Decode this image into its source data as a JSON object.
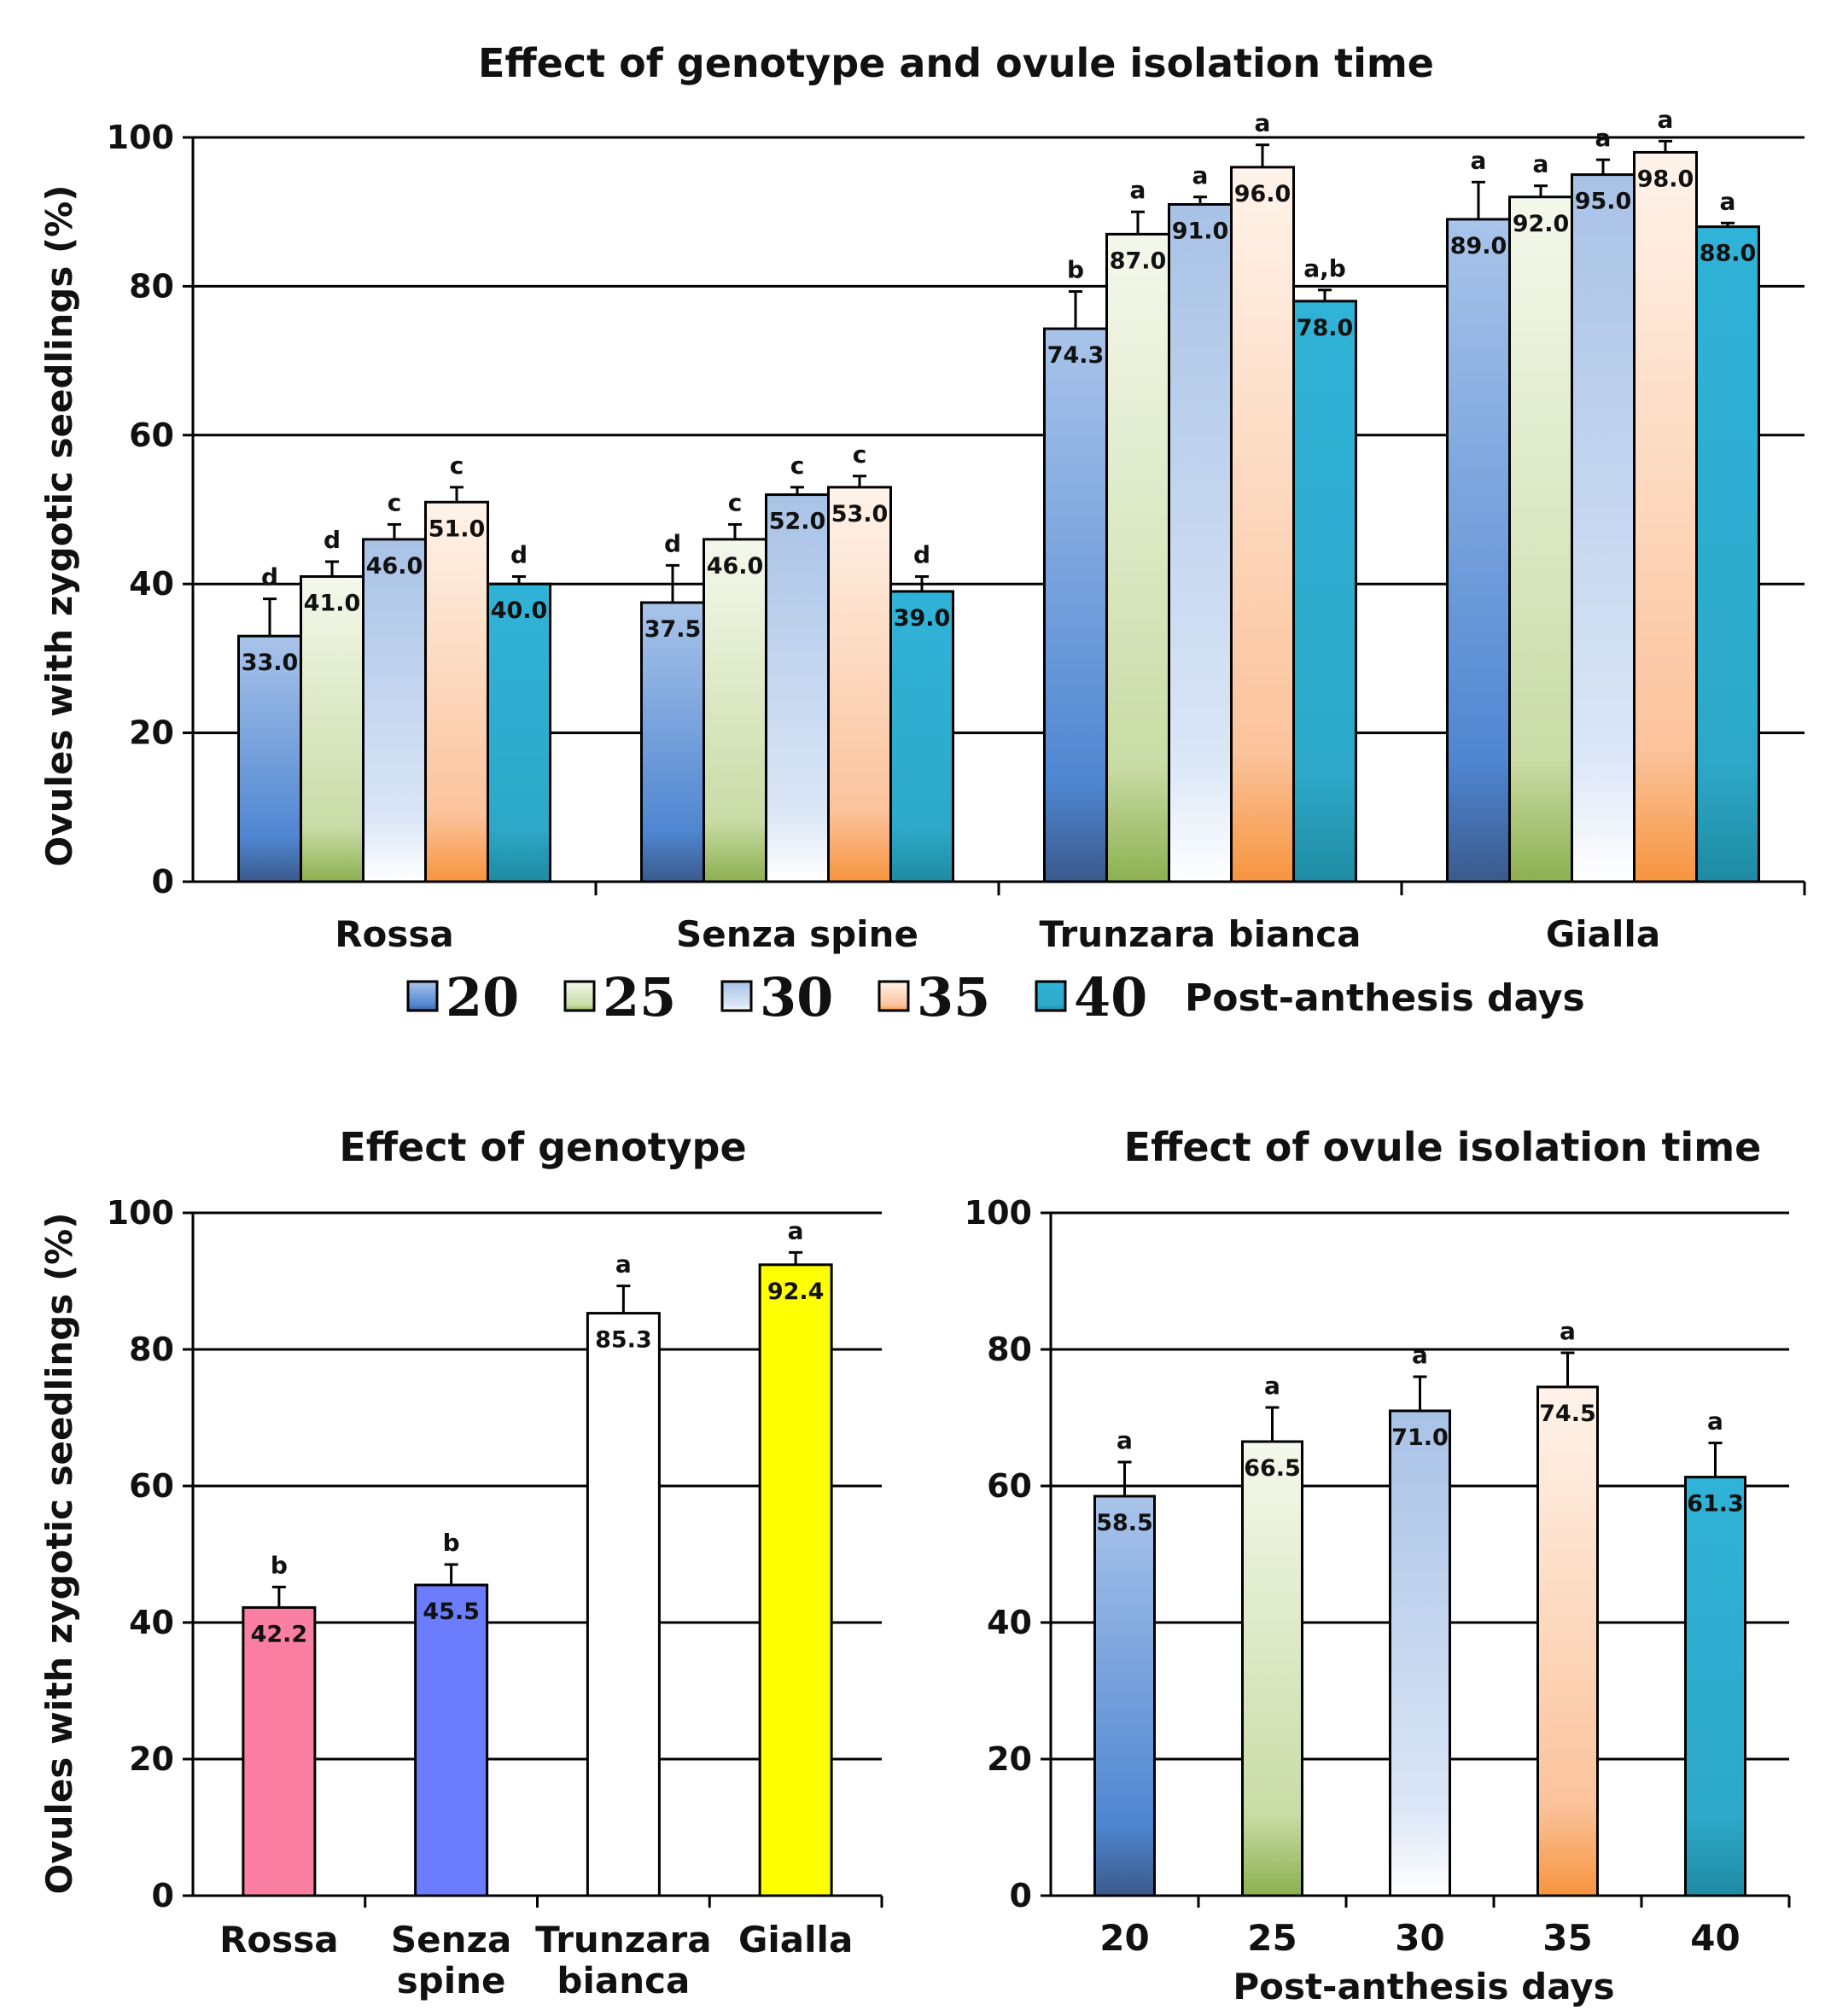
{
  "colors": {
    "d20": [
      "#3a5a8c",
      "#4f86d1",
      "#a9c4ea"
    ],
    "d25": [
      "#8db050",
      "#c9dca6",
      "#f4f8ec"
    ],
    "d30": [
      "#ffffff",
      "#dbe6f6",
      "#a8c2e6"
    ],
    "d35": [
      "#f7943e",
      "#fbc39c",
      "#fef3ea"
    ],
    "d40": [
      "#1e8ba2",
      "#2da8c8",
      "#30b3d8"
    ],
    "rossa": "#fb7fa2",
    "senza": "#6b7dfd",
    "trunzara": "#ffffff",
    "gialla": "#ffff00"
  },
  "chart_data": [
    {
      "type": "bar",
      "title": "Effect of genotype and ovule isolation time",
      "ylabel": "Ovules with zygotic seedlings (%)",
      "xlabel": "",
      "ylim": [
        0,
        100
      ],
      "yticks": [
        "0",
        "20",
        "40",
        "60",
        "80",
        "100"
      ],
      "categories": [
        "Rossa",
        "Senza spine",
        "Trunzara bianca",
        "Gialla"
      ],
      "legend_label": "Post-anthesis days",
      "legend_placement": "bottom",
      "series": [
        {
          "name": "20",
          "values": [
            33.0,
            37.5,
            74.3,
            89.0
          ],
          "labels": [
            "33.0",
            "37.5",
            "74.3",
            "89.0"
          ],
          "errors": [
            5.0,
            5.0,
            5.0,
            5.0
          ],
          "letters": [
            "d",
            "d",
            "b",
            "a"
          ]
        },
        {
          "name": "25",
          "values": [
            41.0,
            46.0,
            87.0,
            92.0
          ],
          "labels": [
            "41.0",
            "46.0",
            "87.0",
            "92.0"
          ],
          "errors": [
            2.0,
            2.0,
            3.0,
            1.5
          ],
          "letters": [
            "d",
            "c",
            "a",
            "a"
          ]
        },
        {
          "name": "30",
          "values": [
            46.0,
            52.0,
            91.0,
            95.0
          ],
          "labels": [
            "46.0",
            "52.0",
            "91.0",
            "95.0"
          ],
          "errors": [
            2.0,
            1.0,
            1.0,
            2.0
          ],
          "letters": [
            "c",
            "c",
            "a",
            "a"
          ]
        },
        {
          "name": "35",
          "values": [
            51.0,
            53.0,
            96.0,
            98.0
          ],
          "labels": [
            "51.0",
            "53.0",
            "96.0",
            "98.0"
          ],
          "errors": [
            2.0,
            1.5,
            3.0,
            1.5
          ],
          "letters": [
            "c",
            "c",
            "a",
            "a"
          ]
        },
        {
          "name": "40",
          "values": [
            40.0,
            39.0,
            78.0,
            88.0
          ],
          "labels": [
            "40.0",
            "39.0",
            "78.0",
            "88.0"
          ],
          "errors": [
            1.0,
            2.0,
            1.5,
            0.5
          ],
          "letters": [
            "d",
            "d",
            "a,b",
            "a"
          ]
        }
      ]
    },
    {
      "type": "bar",
      "title": "Effect of genotype",
      "ylabel": "Ovules with zygotic seedlings (%)",
      "xlabel": "",
      "ylim": [
        0,
        100
      ],
      "yticks": [
        "0",
        "20",
        "40",
        "60",
        "80",
        "100"
      ],
      "categories": [
        [
          "Rossa"
        ],
        [
          "Senza",
          "spine"
        ],
        [
          "Trunzara",
          "bianca"
        ],
        [
          "Gialla"
        ]
      ],
      "values": [
        42.2,
        45.5,
        85.3,
        92.4
      ],
      "labels": [
        "42.2",
        "45.5",
        "85.3",
        "92.4"
      ],
      "errors": [
        3.0,
        3.0,
        4.0,
        1.8
      ],
      "letters": [
        "b",
        "b",
        "a",
        "a"
      ]
    },
    {
      "type": "bar",
      "title": "Effect of ovule isolation time",
      "ylabel": "",
      "xlabel": "Post-anthesis days",
      "ylim": [
        0,
        100
      ],
      "yticks": [
        "0",
        "20",
        "40",
        "60",
        "80",
        "100"
      ],
      "categories": [
        "20",
        "25",
        "30",
        "35",
        "40"
      ],
      "values": [
        58.5,
        66.5,
        71.0,
        74.5,
        61.3
      ],
      "labels": [
        "58.5",
        "66.5",
        "71.0",
        "74.5",
        "61.3"
      ],
      "errors": [
        5.0,
        5.0,
        5.0,
        5.0,
        5.0
      ],
      "letters": [
        "a",
        "a",
        "a",
        "a",
        "a"
      ]
    }
  ]
}
